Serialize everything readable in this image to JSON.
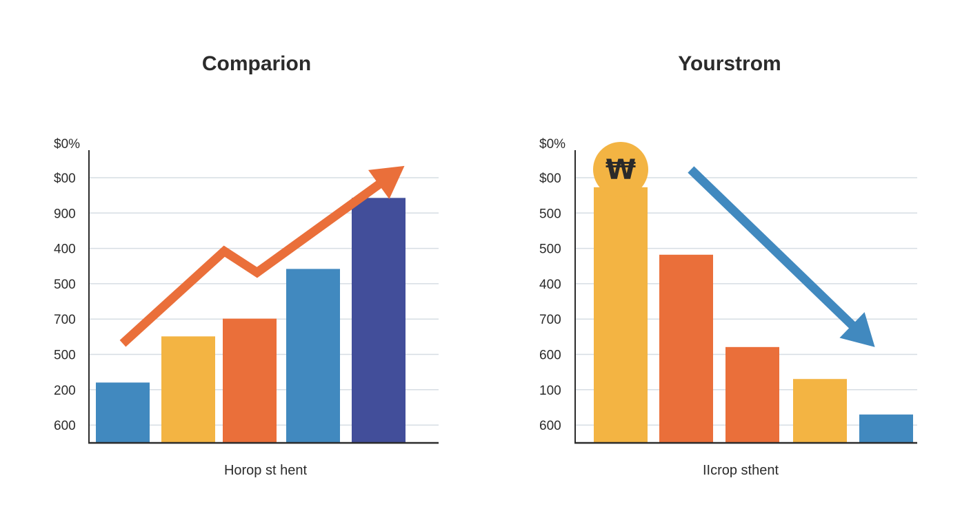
{
  "chart_data": [
    {
      "type": "bar",
      "title": "Comparion",
      "xlabel": "Horop st hent",
      "ylabel": "",
      "tick_labels": [
        "$0%",
        "$00",
        "900",
        "400",
        "500",
        "700",
        "500",
        "200",
        "600"
      ],
      "values": [
        1.7,
        3.0,
        3.5,
        4.9,
        6.9
      ],
      "ylim": [
        0,
        8.4
      ],
      "colors": [
        "#4189bf",
        "#f3b443",
        "#ea6f3a",
        "#4189bf",
        "#424e9a"
      ],
      "trend_arrow": {
        "direction": "up",
        "color": "#ea6f3a",
        "points": [
          [
            0,
            2.8
          ],
          [
            1.55,
            5.4
          ],
          [
            2.05,
            4.8
          ],
          [
            4.3,
            7.8
          ]
        ]
      },
      "grid": true,
      "legend": "none"
    },
    {
      "type": "bar",
      "title": "Yourstrom",
      "xlabel": "IIcrop sthent",
      "ylabel": "",
      "tick_labels": [
        "$0%",
        "$00",
        "500",
        "500",
        "400",
        "700",
        "600",
        "100",
        "600"
      ],
      "values": [
        7.2,
        5.3,
        2.7,
        1.8,
        0.8
      ],
      "ylim": [
        0,
        8.4
      ],
      "colors": [
        "#f3b443",
        "#ea6f3a",
        "#ea6f3a",
        "#f3b443",
        "#4189bf"
      ],
      "badge": {
        "symbol": "₩",
        "color": "#f3b443"
      },
      "trend_arrow": {
        "direction": "down",
        "color": "#4189bf",
        "points": [
          [
            1.05,
            7.7
          ],
          [
            3.8,
            2.7
          ]
        ]
      },
      "grid": true,
      "legend": "none"
    }
  ]
}
